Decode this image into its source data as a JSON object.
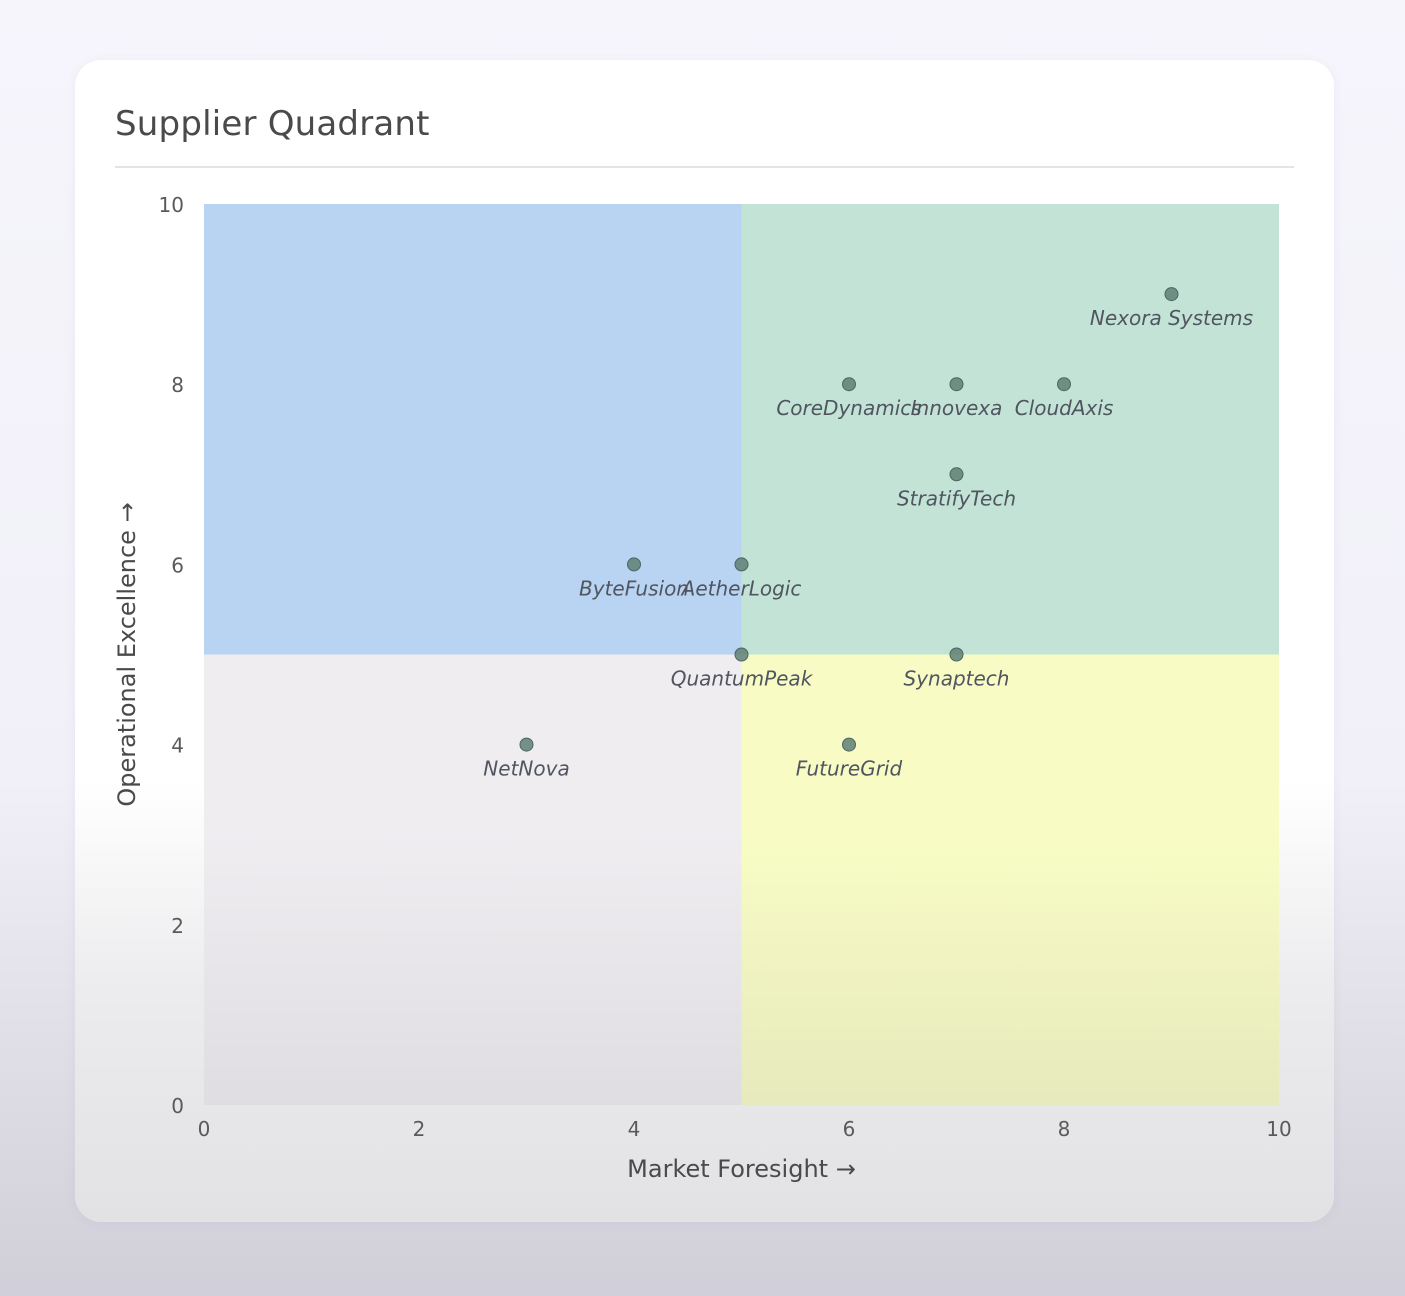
{
  "card": {
    "title": "Supplier Quadrant"
  },
  "chart_data": {
    "type": "scatter",
    "title": "Supplier Quadrant",
    "xlabel": "Market Foresight →",
    "ylabel": "Operational Excellence →",
    "xlim": [
      0,
      10
    ],
    "ylim": [
      0,
      10
    ],
    "xticks": [
      0,
      2,
      4,
      6,
      8,
      10
    ],
    "yticks": [
      0,
      2,
      4,
      6,
      8,
      10
    ],
    "grid": false,
    "quadrant_split": {
      "x": 5,
      "y": 5
    },
    "quadrants": [
      {
        "position": "top-left",
        "color": "#b8d4f2"
      },
      {
        "position": "top-right",
        "color": "#c2e3d6"
      },
      {
        "position": "bottom-left",
        "color": "#efedf0"
      },
      {
        "position": "bottom-right",
        "color": "#f8fcc4"
      }
    ],
    "points": [
      {
        "name": "Nexora Systems",
        "x": 9,
        "y": 9
      },
      {
        "name": "CoreDynamics",
        "x": 6,
        "y": 8
      },
      {
        "name": "Innovexa",
        "x": 7,
        "y": 8
      },
      {
        "name": "CloudAxis",
        "x": 8,
        "y": 8
      },
      {
        "name": "StratifyTech",
        "x": 7,
        "y": 7
      },
      {
        "name": "ByteFusion",
        "x": 4,
        "y": 6
      },
      {
        "name": "AetherLogic",
        "x": 5,
        "y": 6
      },
      {
        "name": "QuantumPeak",
        "x": 5,
        "y": 5
      },
      {
        "name": "Synaptech",
        "x": 7,
        "y": 5
      },
      {
        "name": "NetNova",
        "x": 3,
        "y": 4
      },
      {
        "name": "FutureGrid",
        "x": 6,
        "y": 4
      }
    ],
    "colors": {
      "point": "#5f7f76",
      "point_stroke": "#4a6660"
    }
  }
}
